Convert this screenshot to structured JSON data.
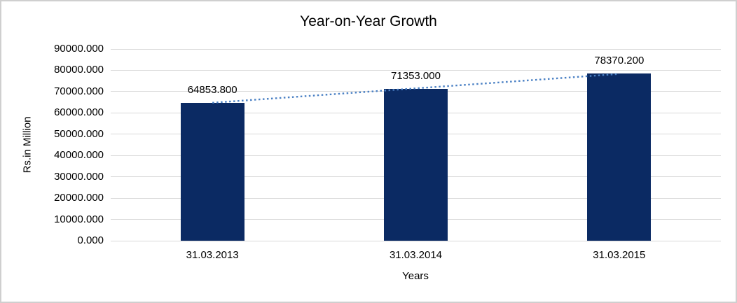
{
  "chart_data": {
    "type": "bar",
    "title": "Year-on-Year Growth",
    "xlabel": "Years",
    "ylabel": "Rs.in Million",
    "categories": [
      "31.03.2013",
      "31.03.2014",
      "31.03.2015"
    ],
    "series": [
      {
        "name": "Rs.in Million",
        "values": [
          64853.8,
          71353.0,
          78370.2
        ]
      }
    ],
    "data_labels": [
      "64853.800",
      "71353.000",
      "78370.200"
    ],
    "ylim": [
      0,
      90000
    ],
    "ytick_step": 10000,
    "ytick_labels": [
      "0.000",
      "10000.000",
      "20000.000",
      "30000.000",
      "40000.000",
      "50000.000",
      "60000.000",
      "70000.000",
      "80000.000",
      "90000.000"
    ],
    "grid": "horizontal",
    "legend": "none",
    "bar_color": "#0b2a63",
    "gridline_color": "#d9d9d9",
    "trendline": {
      "type": "linear",
      "style": "dotted",
      "color": "#4a80c4"
    },
    "frame_border_color": "#cfcfcf"
  }
}
